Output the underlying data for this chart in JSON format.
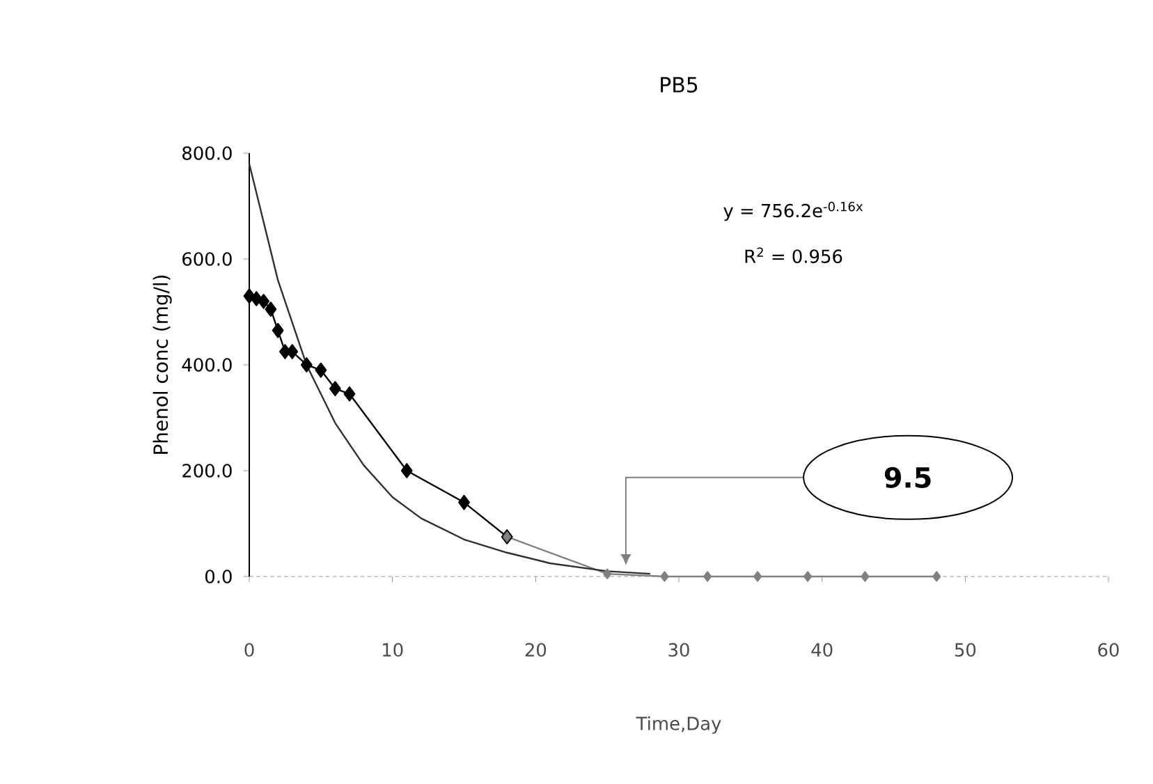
{
  "chart_data": {
    "type": "line",
    "title": "PB5",
    "xlabel": "Time,Day",
    "ylabel": "Phenol conc (mg/l)",
    "xlim": [
      0,
      60
    ],
    "xticks": [
      0,
      10,
      20,
      30,
      40,
      50,
      60
    ],
    "ylim": [
      0,
      800
    ],
    "yticks": [
      {
        "value": 0,
        "label": "0.0"
      },
      {
        "value": 200,
        "label": "200.0"
      },
      {
        "value": 400,
        "label": "400.0"
      },
      {
        "value": 600,
        "label": "600.0"
      },
      {
        "value": 800,
        "label": "800.0"
      }
    ],
    "marker": "diamond",
    "series": [
      {
        "color": "#000000",
        "x": [
          0,
          0.5,
          1,
          1.5,
          2,
          2.5,
          3,
          4,
          5,
          6,
          7,
          11,
          15,
          18
        ],
        "values": [
          530,
          525,
          520,
          505,
          465,
          425,
          425,
          400,
          390,
          355,
          345,
          200,
          140,
          75
        ]
      },
      {
        "color": "#808080",
        "x": [
          18,
          25,
          29,
          32,
          35.5,
          39,
          43,
          48
        ],
        "values": [
          75,
          5,
          0,
          0,
          0,
          0,
          0,
          0
        ]
      },
      {
        "type": "line",
        "marker": "none",
        "color": "#303030",
        "x": [
          0,
          2,
          4,
          6,
          8,
          10,
          12,
          15,
          18,
          21,
          25,
          28
        ],
        "values": [
          780,
          560,
          400,
          290,
          210,
          150,
          110,
          70,
          45,
          25,
          10,
          5
        ]
      }
    ],
    "annotations": [
      "y = 756.2e$^{-0.16x}$",
      "R$^{2}$ = 0.956",
      "9.5"
    ]
  }
}
